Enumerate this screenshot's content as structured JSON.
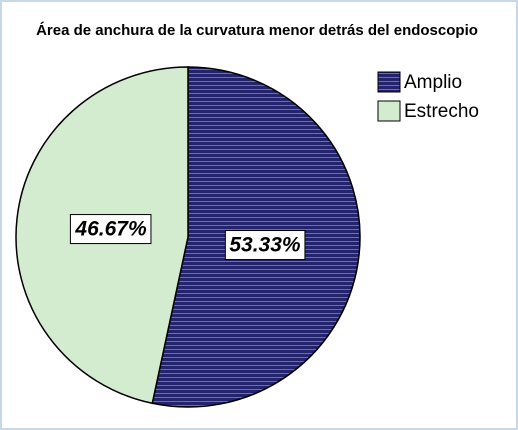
{
  "chart_data": {
    "type": "pie",
    "title": "Área de anchura de la curvatura menor detrás del endoscopio",
    "categories": [
      "Amplio",
      "Estrecho"
    ],
    "values": [
      53.33,
      46.67
    ],
    "value_labels": [
      "53.33%",
      "46.67%"
    ],
    "colors": [
      "#23236e",
      "#d3ebcf"
    ]
  }
}
